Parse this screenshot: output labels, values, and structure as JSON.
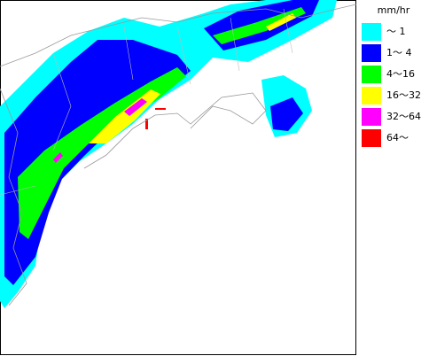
{
  "legend": {
    "unit": "mm/hr",
    "items": [
      {
        "label": "～ 1",
        "color": "#00ffff"
      },
      {
        "label": "1～ 4",
        "color": "#0000ff"
      },
      {
        "label": "4～16",
        "color": "#00ff00"
      },
      {
        "label": "16～32",
        "color": "#ffff00"
      },
      {
        "label": "32～64",
        "color": "#ff00ff"
      },
      {
        "label": "64～",
        "color": "#ff0000"
      }
    ]
  }
}
